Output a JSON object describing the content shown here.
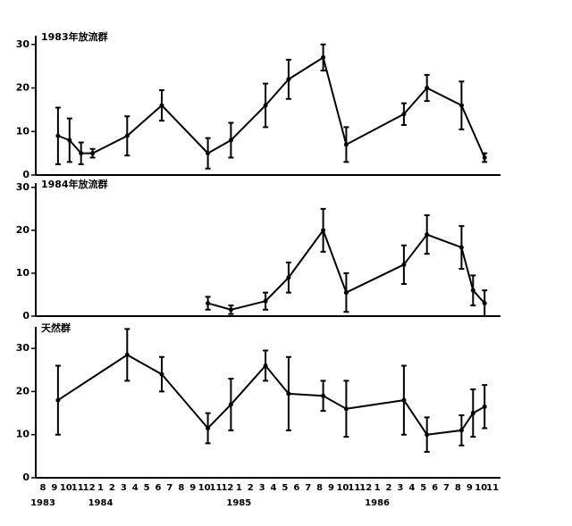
{
  "chart_data": [
    {
      "type": "line",
      "title": "1983年放流群",
      "color": "#000000",
      "ylim": [
        0,
        32
      ],
      "yticks": [
        0,
        10,
        20,
        30
      ],
      "values": [
        null,
        9,
        8,
        5,
        5,
        null,
        null,
        9,
        null,
        null,
        16,
        null,
        null,
        null,
        5,
        null,
        8,
        null,
        null,
        16,
        null,
        22,
        null,
        null,
        27,
        null,
        7,
        null,
        null,
        null,
        null,
        14,
        null,
        20,
        null,
        null,
        16,
        null,
        4,
        null
      ],
      "errors": [
        null,
        6.5,
        5,
        2.5,
        1,
        null,
        null,
        4.5,
        null,
        null,
        3.5,
        null,
        null,
        null,
        3.5,
        null,
        4,
        null,
        null,
        5,
        null,
        4.5,
        null,
        null,
        3,
        null,
        4,
        null,
        null,
        null,
        null,
        2.5,
        null,
        3,
        null,
        null,
        5.5,
        null,
        1,
        null
      ]
    },
    {
      "type": "line",
      "title": "1984年放流群",
      "color": "#000000",
      "ylim": [
        0,
        31
      ],
      "yticks": [
        0,
        10,
        20,
        30
      ],
      "values": [
        null,
        null,
        null,
        null,
        null,
        null,
        null,
        null,
        null,
        null,
        null,
        null,
        null,
        null,
        3,
        null,
        1.5,
        null,
        null,
        3.5,
        null,
        9,
        null,
        null,
        20,
        null,
        5.5,
        null,
        null,
        null,
        null,
        12,
        null,
        19,
        null,
        null,
        16,
        6,
        3,
        null
      ],
      "errors": [
        null,
        null,
        null,
        null,
        null,
        null,
        null,
        null,
        null,
        null,
        null,
        null,
        null,
        null,
        1.5,
        null,
        1,
        null,
        null,
        2,
        null,
        3.5,
        null,
        null,
        5,
        null,
        4.5,
        null,
        null,
        null,
        null,
        4.5,
        null,
        4.5,
        null,
        null,
        5,
        3.5,
        3,
        null
      ]
    },
    {
      "type": "line",
      "title": "天然群",
      "color": "#000000",
      "ylim": [
        0,
        35
      ],
      "yticks": [
        0,
        10,
        20,
        30
      ],
      "categories": [
        "8",
        "9",
        "10",
        "11",
        "12",
        "1",
        "2",
        "3",
        "4",
        "5",
        "6",
        "7",
        "8",
        "9",
        "10",
        "11",
        "12",
        "1",
        "2",
        "3",
        "4",
        "5",
        "6",
        "7",
        "8",
        "9",
        "10",
        "11",
        "12",
        "1",
        "2",
        "3",
        "4",
        "5",
        "6",
        "7",
        "8",
        "9",
        "10",
        "11"
      ],
      "years": [
        "1983",
        null,
        null,
        null,
        null,
        "1984",
        null,
        null,
        null,
        null,
        null,
        null,
        null,
        null,
        null,
        null,
        null,
        "1985",
        null,
        null,
        null,
        null,
        null,
        null,
        null,
        null,
        null,
        null,
        null,
        "1986",
        null,
        null,
        null,
        null,
        null,
        null,
        null,
        null,
        null,
        null
      ],
      "values": [
        null,
        18,
        null,
        null,
        null,
        null,
        null,
        28.5,
        null,
        null,
        24,
        null,
        null,
        null,
        11.5,
        null,
        17,
        null,
        null,
        26,
        null,
        19.5,
        null,
        null,
        19,
        null,
        16,
        null,
        null,
        null,
        null,
        18,
        null,
        10,
        null,
        null,
        11,
        15,
        16.5,
        null
      ],
      "errors": [
        null,
        8,
        null,
        null,
        null,
        null,
        null,
        6,
        null,
        null,
        4,
        null,
        null,
        null,
        3.5,
        null,
        6,
        null,
        null,
        3.5,
        null,
        8.5,
        null,
        null,
        3.5,
        null,
        6.5,
        null,
        null,
        null,
        null,
        8,
        null,
        4,
        null,
        null,
        3.5,
        5.5,
        5,
        null
      ]
    }
  ]
}
